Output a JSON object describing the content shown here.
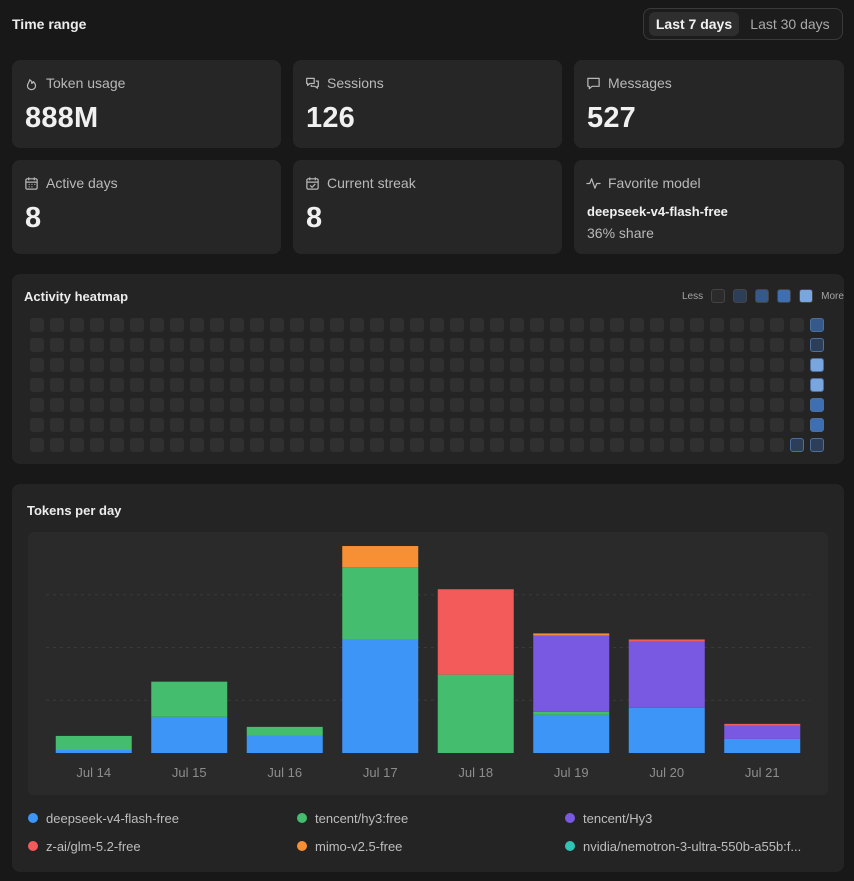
{
  "header": {
    "title": "Time range",
    "ranges": [
      {
        "label": "Last 7 days",
        "active": true
      },
      {
        "label": "Last 30 days",
        "active": false
      }
    ]
  },
  "stats": [
    {
      "label": "Token usage",
      "value": "888M",
      "icon": "flame-icon"
    },
    {
      "label": "Sessions",
      "value": "126",
      "icon": "chat-bubbles-icon"
    },
    {
      "label": "Messages",
      "value": "527",
      "icon": "message-icon"
    },
    {
      "label": "Active days",
      "value": "8",
      "icon": "calendar-icon"
    },
    {
      "label": "Current streak",
      "value": "8",
      "icon": "calendar-check-icon"
    }
  ],
  "favorite": {
    "label": "Favorite model",
    "icon": "activity-icon",
    "model": "deepseek-v4-flash-free",
    "share": "36% share"
  },
  "heatmap": {
    "title": "Activity heatmap",
    "less_label": "Less",
    "more_label": "More",
    "scale_colors": [
      "#2b2b2b",
      "#2c3e58",
      "#35598a",
      "#3f6fb3",
      "#7aa6df"
    ],
    "weeks": 40,
    "rows": 7,
    "empty_color": "#303030",
    "active_cells": [
      {
        "week": 39,
        "day": 0,
        "level": 2
      },
      {
        "week": 39,
        "day": 1,
        "level": 1
      },
      {
        "week": 39,
        "day": 2,
        "level": 4
      },
      {
        "week": 39,
        "day": 3,
        "level": 4
      },
      {
        "week": 39,
        "day": 4,
        "level": 3
      },
      {
        "week": 39,
        "day": 5,
        "level": 3
      },
      {
        "week": 39,
        "day": 6,
        "level": 1
      },
      {
        "week": 38,
        "day": 6,
        "level": 1
      }
    ]
  },
  "chart_section": {
    "title": "Tokens per day"
  },
  "chart_data": {
    "type": "bar",
    "stacked": true,
    "categories": [
      "Jul 14",
      "Jul 15",
      "Jul 16",
      "Jul 17",
      "Jul 18",
      "Jul 19",
      "Jul 20",
      "Jul 21"
    ],
    "ylim": [
      0,
      210
    ],
    "grid": true,
    "legend_position": "bottom",
    "series": [
      {
        "name": "deepseek-v4-flash-free",
        "color": "#3d95f7",
        "values": [
          3,
          36,
          17,
          113,
          0,
          38,
          45,
          14
        ]
      },
      {
        "name": "tencent/hy3:free",
        "color": "#45bd6e",
        "values": [
          14,
          35,
          9,
          72,
          78,
          3,
          0,
          0
        ]
      },
      {
        "name": "tencent/Hy3",
        "color": "#7a59e2",
        "values": [
          0,
          0,
          0,
          0,
          0,
          76,
          66,
          13
        ]
      },
      {
        "name": "z-ai/glm-5.2-free",
        "color": "#f35a5a",
        "values": [
          0,
          0,
          0,
          0,
          85,
          0,
          2,
          2
        ]
      },
      {
        "name": "mimo-v2.5-free",
        "color": "#f78f35",
        "values": [
          0,
          0,
          0,
          21,
          0,
          2,
          0,
          0
        ]
      },
      {
        "name": "nvidia/nemotron-3-ultra-550b-a55b:f...",
        "color": "#2fc4b3",
        "values": [
          0,
          0,
          0,
          0,
          0,
          0,
          0,
          0
        ]
      }
    ]
  }
}
